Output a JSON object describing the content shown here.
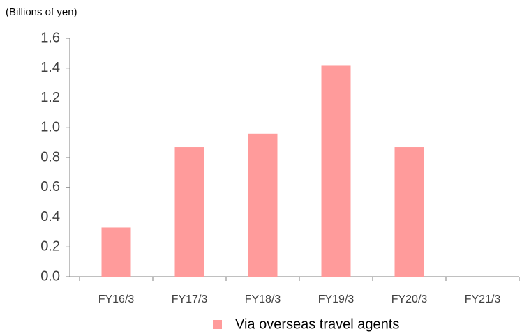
{
  "chart_data": {
    "type": "bar",
    "y_axis_label": "(Billions of yen)",
    "categories": [
      "FY16/3",
      "FY17/3",
      "FY18/3",
      "FY19/3",
      "FY20/3",
      "FY21/3"
    ],
    "series": [
      {
        "name": "Via overseas travel agents",
        "color": "#ff9b9b",
        "values": [
          0.33,
          0.87,
          0.96,
          1.42,
          0.87,
          null
        ]
      }
    ],
    "ylim": [
      0,
      1.6
    ],
    "yticks": [
      {
        "value": 0,
        "label": "0.0"
      },
      0.2,
      0.4,
      0.6,
      0.8,
      {
        "value": 1,
        "label": "1.0"
      },
      1.2,
      1.4,
      1.6
    ],
    "grid": false,
    "legend": "bottom"
  }
}
